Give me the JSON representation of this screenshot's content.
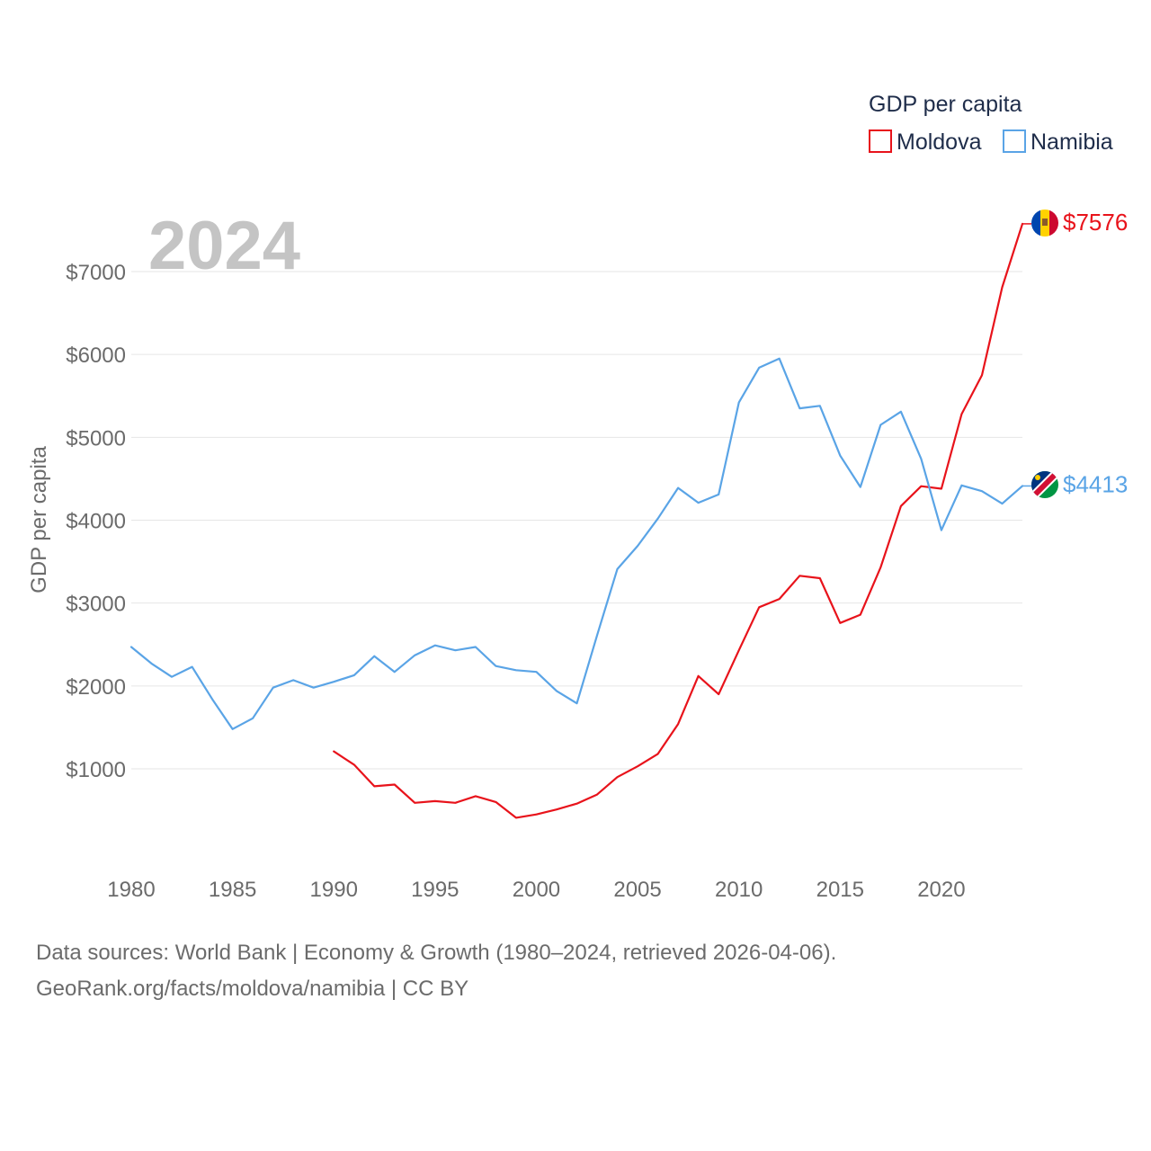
{
  "chart_data": {
    "type": "line",
    "title": "",
    "year_label": "2024",
    "ylabel": "GDP per capita",
    "xlabel": "",
    "xlim": [
      1980,
      2024
    ],
    "ylim": [
      0,
      7800
    ],
    "x_ticks": [
      1980,
      1985,
      1990,
      1995,
      2000,
      2005,
      2010,
      2015,
      2020
    ],
    "y_ticks": [
      1000,
      2000,
      3000,
      4000,
      5000,
      6000,
      7000
    ],
    "y_tick_labels": [
      "$1000",
      "$2000",
      "$3000",
      "$4000",
      "$5000",
      "$6000",
      "$7000"
    ],
    "x_tick_labels": [
      "1980",
      "1985",
      "1990",
      "1995",
      "2000",
      "2005",
      "2010",
      "2015",
      "2020"
    ],
    "legend": {
      "title": "GDP per capita",
      "placement": "top-right",
      "entries": [
        "Moldova",
        "Namibia"
      ]
    },
    "series": [
      {
        "name": "Moldova",
        "color": "#e8131b",
        "end_label": "$7576",
        "flag_icon": "moldova-flag-icon",
        "x": [
          1990,
          1991,
          1992,
          1993,
          1994,
          1995,
          1996,
          1997,
          1998,
          1999,
          2000,
          2001,
          2002,
          2003,
          2004,
          2005,
          2006,
          2007,
          2008,
          2009,
          2010,
          2011,
          2012,
          2013,
          2014,
          2015,
          2016,
          2017,
          2018,
          2019,
          2020,
          2021,
          2022,
          2023,
          2024
        ],
        "values": [
          1210,
          1050,
          790,
          810,
          590,
          610,
          590,
          670,
          600,
          410,
          450,
          510,
          580,
          690,
          900,
          1030,
          1180,
          1540,
          2120,
          1900,
          2430,
          2950,
          3050,
          3330,
          3300,
          2760,
          2860,
          3430,
          4170,
          4410,
          4380,
          5280,
          5750,
          6810,
          7576
        ]
      },
      {
        "name": "Namibia",
        "color": "#5aa4e6",
        "end_label": "$4413",
        "flag_icon": "namibia-flag-icon",
        "x": [
          1980,
          1981,
          1982,
          1983,
          1984,
          1985,
          1986,
          1987,
          1988,
          1989,
          1990,
          1991,
          1992,
          1993,
          1994,
          1995,
          1996,
          1997,
          1998,
          1999,
          2000,
          2001,
          2002,
          2003,
          2004,
          2005,
          2006,
          2007,
          2008,
          2009,
          2010,
          2011,
          2012,
          2013,
          2014,
          2015,
          2016,
          2017,
          2018,
          2019,
          2020,
          2021,
          2022,
          2023,
          2024
        ],
        "values": [
          2470,
          2270,
          2110,
          2230,
          1840,
          1480,
          1610,
          1980,
          2070,
          1980,
          2050,
          2130,
          2360,
          2170,
          2370,
          2490,
          2430,
          2470,
          2240,
          2190,
          2170,
          1940,
          1790,
          2610,
          3410,
          3690,
          4020,
          4390,
          4210,
          4310,
          5420,
          5840,
          5950,
          5350,
          5380,
          4780,
          4400,
          5150,
          5310,
          4740,
          3880,
          4420,
          4350,
          4200,
          4413
        ]
      }
    ]
  },
  "footer": {
    "line1": "Data sources: World Bank | Economy & Growth (1980–2024, retrieved 2026-04-06).",
    "line2": "GeoRank.org/facts/moldova/namibia | CC BY"
  }
}
